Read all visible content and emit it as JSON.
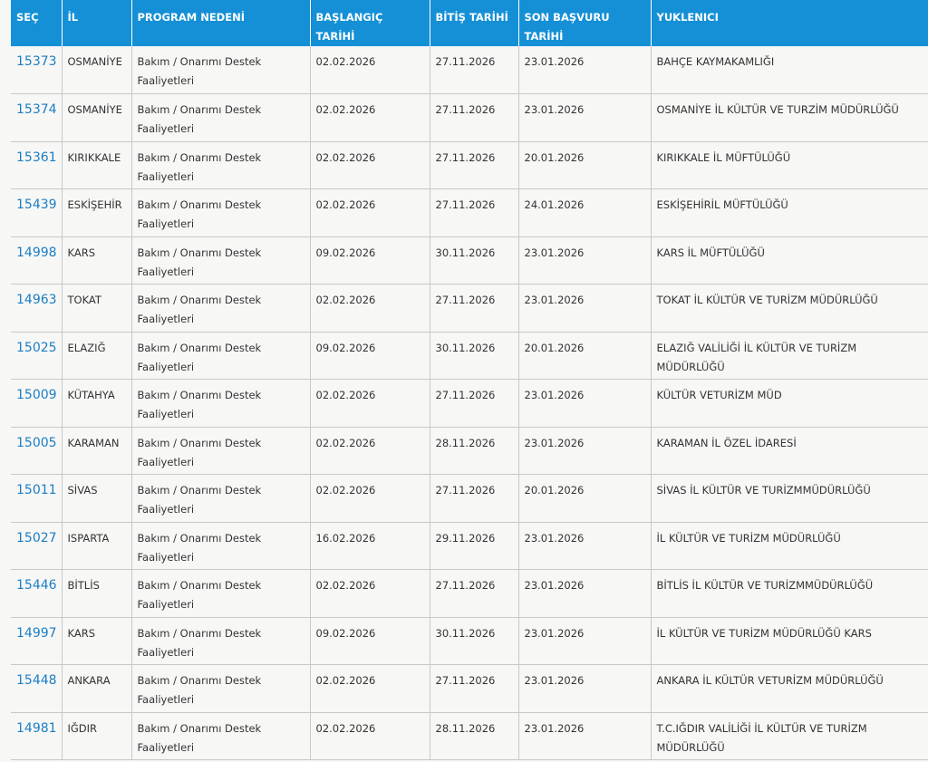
{
  "table": {
    "header": [
      "SEÇ",
      "İL",
      "PROGRAM NEDENİ",
      "BAŞLANGIÇ TARİHİ",
      "BİTİŞ TARİHİ",
      "SON BAŞVURU TARİHİ",
      "YUKLENICI"
    ],
    "rows": [
      [
        "15373",
        "OSMANİYE",
        "Bakım / Onarımı Destek Faaliyetleri",
        "02.02.2026",
        "27.11.2026",
        "23.01.2026",
        "BAHÇE KAYMAKAMLIĞI"
      ],
      [
        "15374",
        "OSMANİYE",
        "Bakım / Onarımı Destek Faaliyetleri",
        "02.02.2026",
        "27.11.2026",
        "23.01.2026",
        "OSMANİYE İL KÜLTÜR VE TURZİM MÜDÜRLÜĞÜ"
      ],
      [
        "15361",
        "KIRIKKALE",
        "Bakım / Onarımı Destek Faaliyetleri",
        "02.02.2026",
        "27.11.2026",
        "20.01.2026",
        "KIRIKKALE İL MÜFTÜLÜĞÜ"
      ],
      [
        "15439",
        "ESKİŞEHİR",
        "Bakım / Onarımı Destek Faaliyetleri",
        "02.02.2026",
        "27.11.2026",
        "24.01.2026",
        "ESKİŞEHİRİL MÜFTÜLÜĞÜ"
      ],
      [
        "14998",
        "KARS",
        "Bakım / Onarımı Destek Faaliyetleri",
        "09.02.2026",
        "30.11.2026",
        "23.01.2026",
        "KARS İL MÜFTÜLÜĞÜ"
      ],
      [
        "14963",
        "TOKAT",
        "Bakım / Onarımı Destek Faaliyetleri",
        "02.02.2026",
        "27.11.2026",
        "23.01.2026",
        "TOKAT İL KÜLTÜR VE TURİZM MÜDÜRLÜĞÜ"
      ],
      [
        "15025",
        "ELAZIĞ",
        "Bakım / Onarımı Destek Faaliyetleri",
        "09.02.2026",
        "30.11.2026",
        "20.01.2026",
        "ELAZIĞ VALİLİĞİ İL KÜLTÜR VE TURİZM MÜDÜRLÜĞÜ"
      ],
      [
        "15009",
        "KÜTAHYA",
        "Bakım / Onarımı Destek Faaliyetleri",
        "02.02.2026",
        "27.11.2026",
        "23.01.2026",
        "KÜLTÜR VETURİZM MÜD"
      ],
      [
        "15005",
        "KARAMAN",
        "Bakım / Onarımı Destek Faaliyetleri",
        "02.02.2026",
        "28.11.2026",
        "23.01.2026",
        "KARAMAN İL ÖZEL İDARESİ"
      ],
      [
        "15011",
        "SİVAS",
        "Bakım / Onarımı Destek Faaliyetleri",
        "02.02.2026",
        "27.11.2026",
        "20.01.2026",
        "SİVAS İL KÜLTÜR VE TURİZMMÜDÜRLÜĞÜ"
      ],
      [
        "15027",
        "ISPARTA",
        "Bakım / Onarımı Destek Faaliyetleri",
        "16.02.2026",
        "29.11.2026",
        "23.01.2026",
        "İL KÜLTÜR VE TURİZM MÜDÜRLÜĞÜ"
      ],
      [
        "15446",
        "BİTLİS",
        "Bakım / Onarımı Destek Faaliyetleri",
        "02.02.2026",
        "27.11.2026",
        "23.01.2026",
        "BİTLİS İL KÜLTÜR VE TURİZMMÜDÜRLÜĞÜ"
      ],
      [
        "14997",
        "KARS",
        "Bakım / Onarımı Destek Faaliyetleri",
        "09.02.2026",
        "30.11.2026",
        "23.01.2026",
        "İL KÜLTÜR VE TURİZM MÜDÜRLÜĞÜ KARS"
      ],
      [
        "15448",
        "ANKARA",
        "Bakım / Onarımı Destek Faaliyetleri",
        "02.02.2026",
        "27.11.2026",
        "23.01.2026",
        "ANKARA İL KÜLTÜR VETURİZM MÜDÜRLÜĞÜ"
      ],
      [
        "14981",
        "IĞDIR",
        "Bakım / Onarımı Destek Faaliyetleri",
        "02.02.2026",
        "28.11.2026",
        "23.01.2026",
        "T.C.IĞDIR VALİLİĞİ İL KÜLTÜR VE TURİZM MÜDÜRLÜĞÜ"
      ]
    ]
  }
}
